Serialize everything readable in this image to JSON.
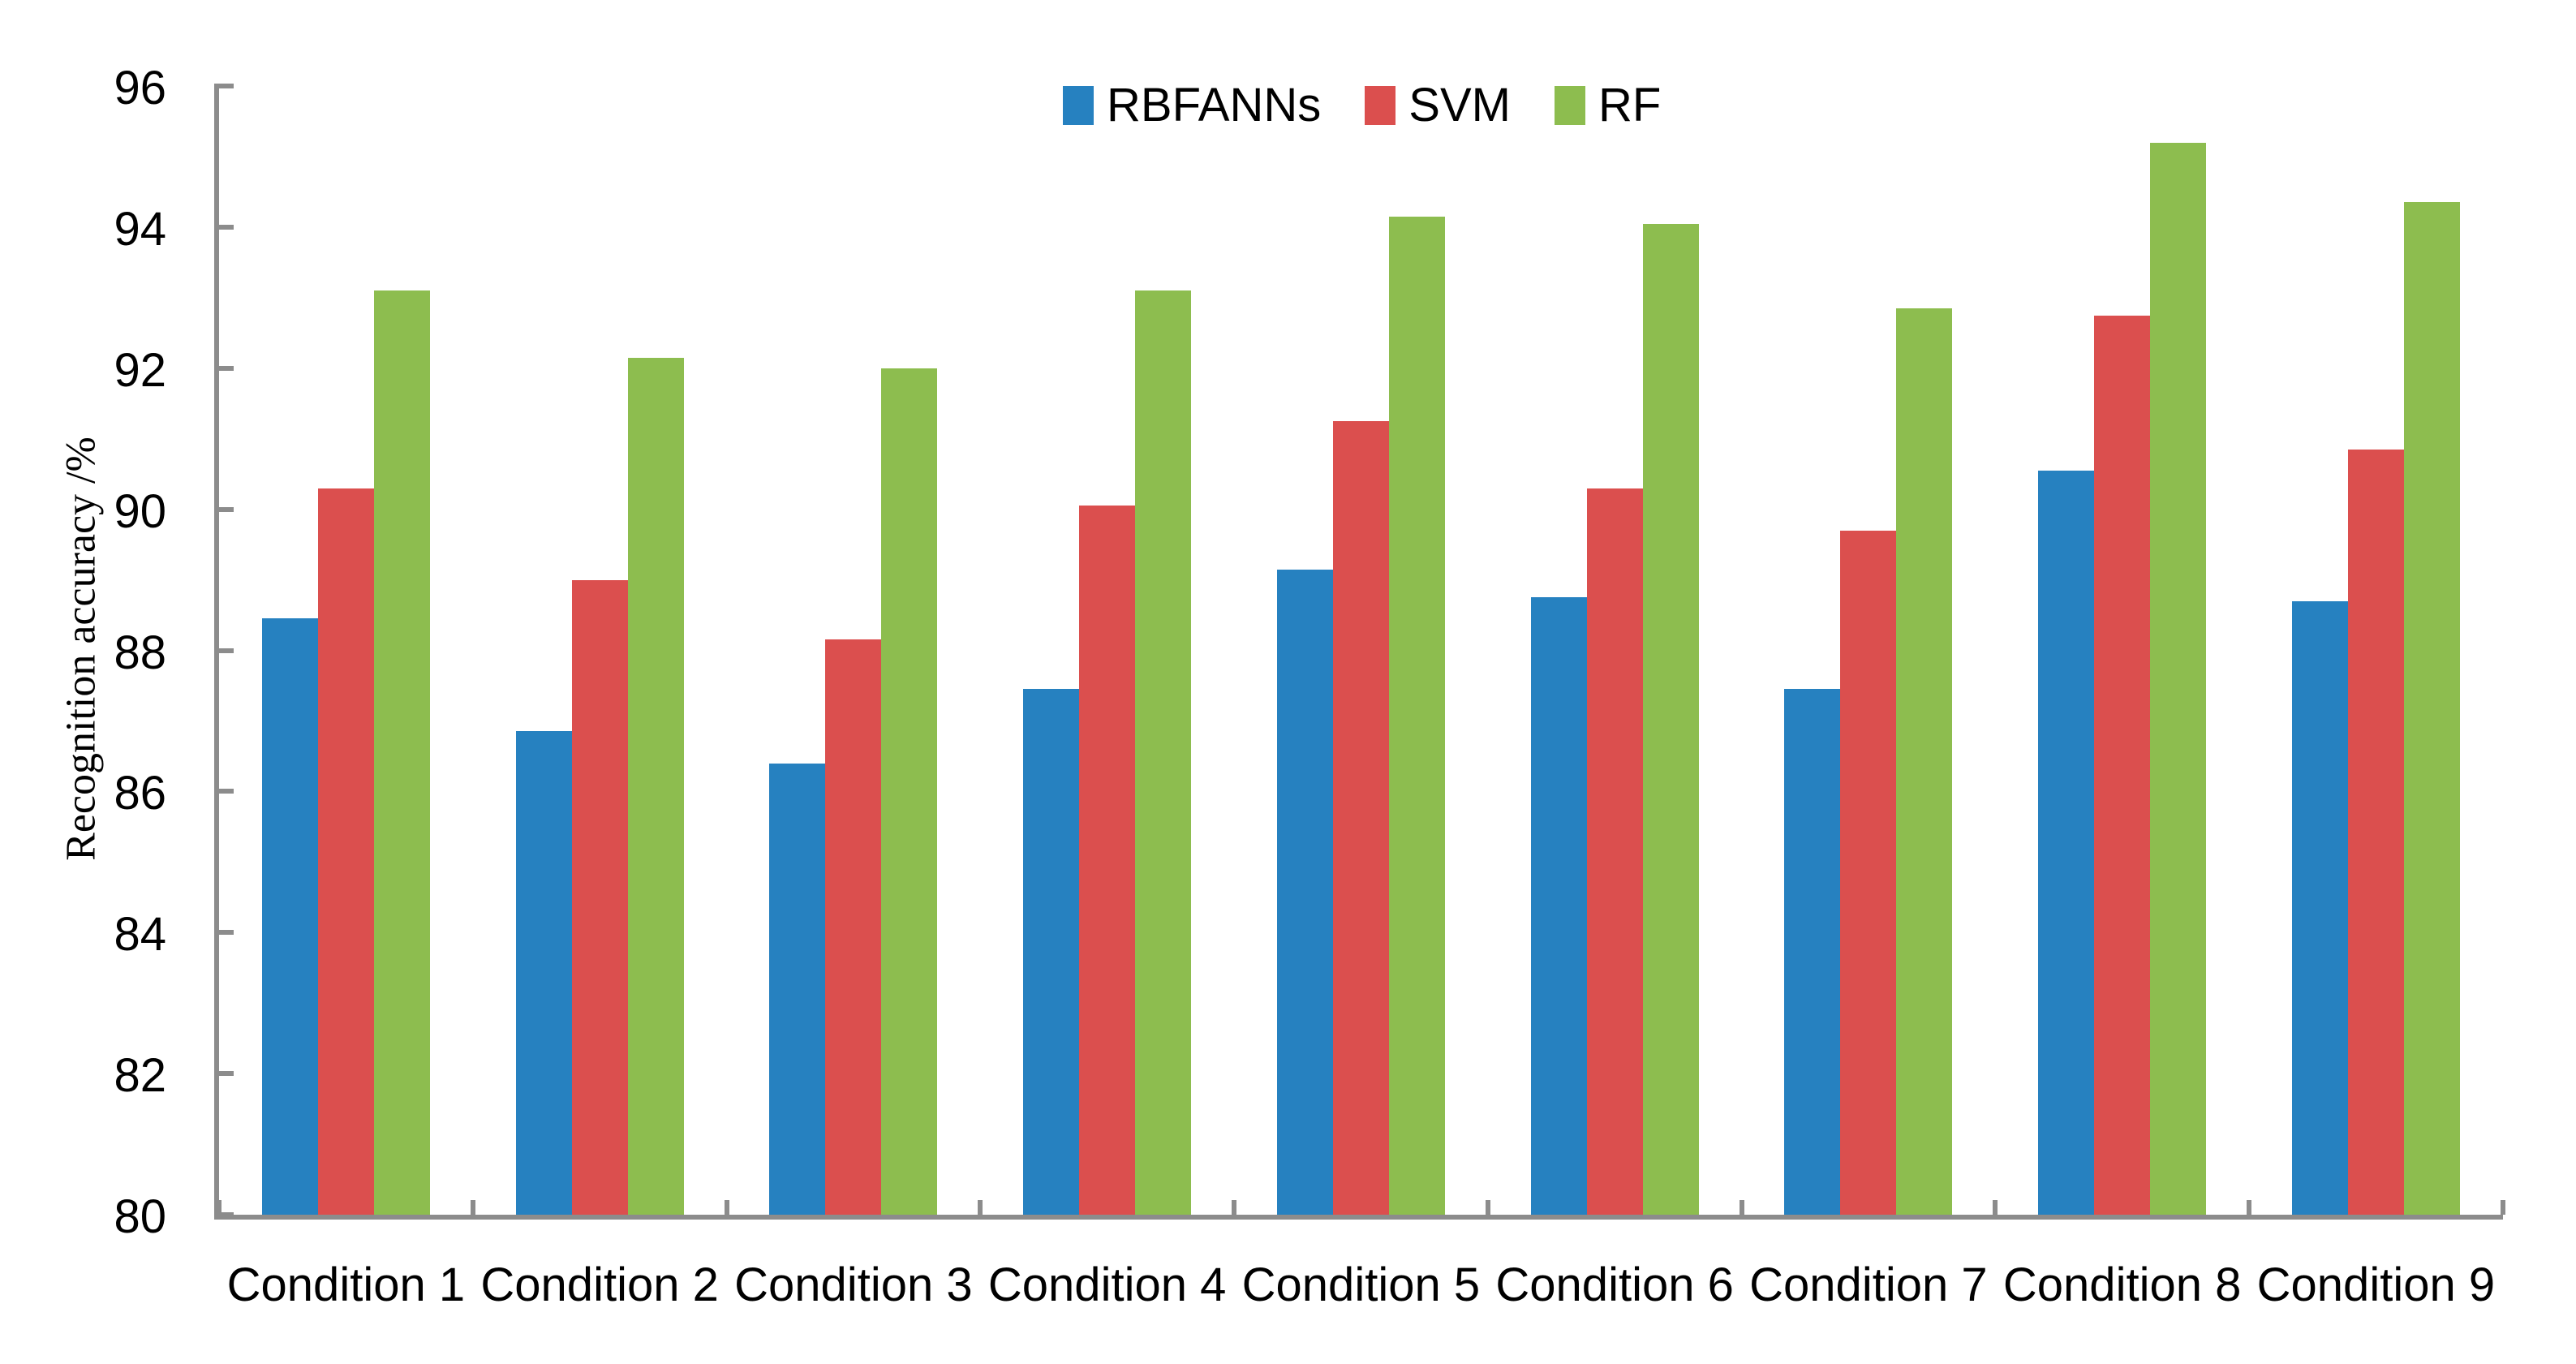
{
  "chart_data": {
    "type": "bar",
    "title": "",
    "xlabel": "",
    "ylabel": "Recognition accuracy /%",
    "categories": [
      "Condition 1",
      "Condition 2",
      "Condition 3",
      "Condition 4",
      "Condition 5",
      "Condition 6",
      "Condition 7",
      "Condition 8",
      "Condition 9"
    ],
    "series": [
      {
        "name": "RBFANNs",
        "color": "#2681C0",
        "values": [
          88.45,
          86.85,
          86.4,
          87.45,
          89.15,
          88.75,
          87.45,
          90.55,
          88.7
        ]
      },
      {
        "name": "SVM",
        "color": "#DB4F4E",
        "values": [
          90.3,
          89.0,
          88.15,
          90.05,
          91.25,
          90.3,
          89.7,
          92.75,
          90.85
        ]
      },
      {
        "name": "RF",
        "color": "#8DBD4F",
        "values": [
          93.1,
          92.15,
          92.0,
          93.1,
          94.15,
          94.05,
          92.85,
          95.2,
          94.35
        ]
      }
    ],
    "ylim": [
      80,
      96
    ],
    "ytick_step": 2,
    "ytick_labels": [
      "80",
      "82",
      "84",
      "86",
      "88",
      "90",
      "92",
      "94",
      "96"
    ],
    "grid": false,
    "legend_position": "top-center",
    "axis_color": "#8C8C8C",
    "text_color": "#000000",
    "background": "#FFFFFF"
  }
}
